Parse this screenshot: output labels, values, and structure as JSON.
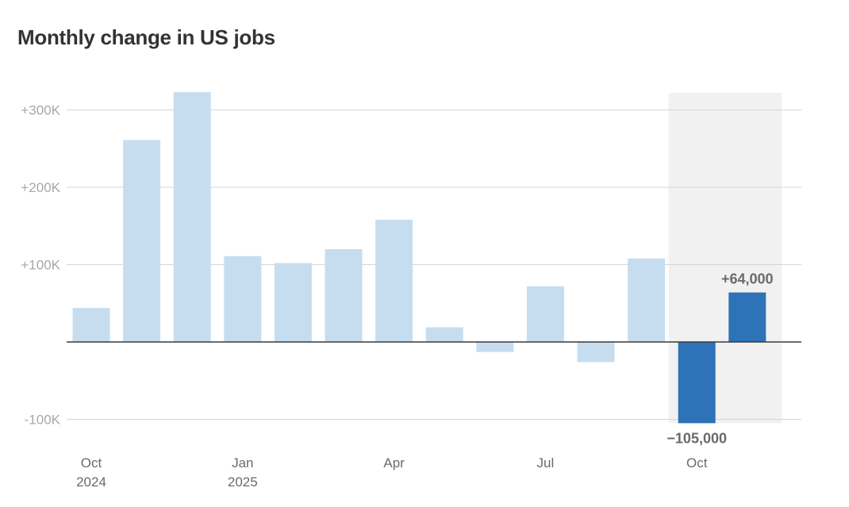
{
  "chart_data": {
    "type": "bar",
    "title": "Monthly change in US jobs",
    "xlabel": "",
    "ylabel": "",
    "ylim": [
      -105000,
      322000
    ],
    "grid": true,
    "categories": [
      "Oct 2024",
      "Nov 2024",
      "Dec 2024",
      "Jan 2025",
      "Feb 2025",
      "Mar 2025",
      "Apr 2025",
      "May 2025",
      "Jun 2025",
      "Jul 2025",
      "Aug 2025",
      "Sep 2025",
      "Oct 2025",
      "Nov 2025"
    ],
    "values": [
      44000,
      261000,
      323000,
      111000,
      102000,
      120000,
      158000,
      19000,
      -13000,
      72000,
      -26000,
      108000,
      -105000,
      64000
    ],
    "highlighted": [
      false,
      false,
      false,
      false,
      false,
      false,
      false,
      false,
      false,
      false,
      false,
      false,
      true,
      true
    ],
    "highlight_range": [
      "Oct 2025",
      "Nov 2025"
    ],
    "y_ticks": [
      {
        "value": 300000,
        "label": "+300K"
      },
      {
        "value": 200000,
        "label": "+200K"
      },
      {
        "value": 100000,
        "label": "+100K"
      },
      {
        "value": -100000,
        "label": "-100K"
      }
    ],
    "x_ticks": [
      {
        "index": 0,
        "label": "Oct",
        "sublabel": "2024"
      },
      {
        "index": 3,
        "label": "Jan",
        "sublabel": "2025"
      },
      {
        "index": 6,
        "label": "Apr",
        "sublabel": ""
      },
      {
        "index": 9,
        "label": "Jul",
        "sublabel": ""
      },
      {
        "index": 12,
        "label": "Oct",
        "sublabel": ""
      }
    ],
    "annotations": [
      {
        "index": 12,
        "text": "−105,000"
      },
      {
        "index": 13,
        "text": "+64,000"
      }
    ],
    "colors": {
      "bar": "#c6ddf0",
      "bar_highlight": "#2e72b7",
      "highlight_band": "#f1f1f1",
      "gridline": "#d6d6d6",
      "zero_line": "#3a3a3a",
      "title": "#333333"
    }
  }
}
